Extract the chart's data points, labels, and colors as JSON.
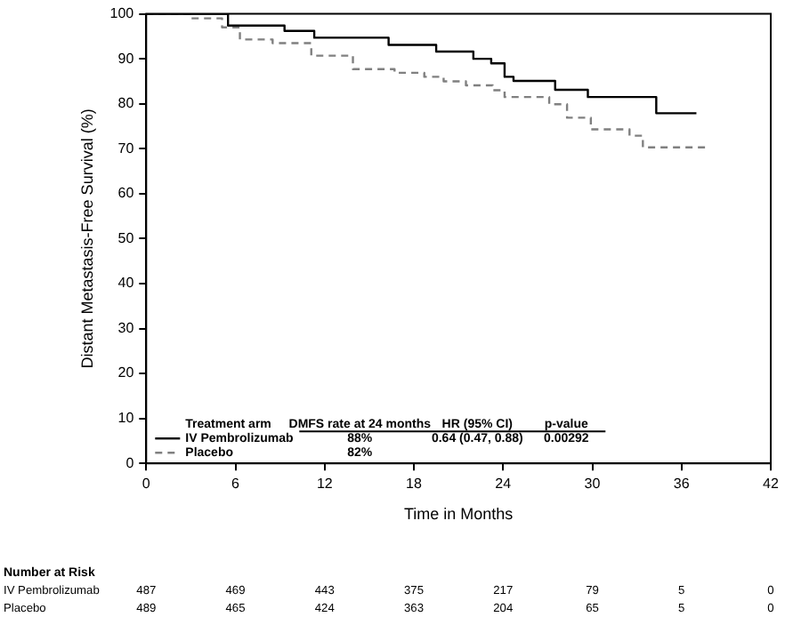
{
  "chart_data": {
    "type": "step",
    "xlabel": "Time in Months",
    "ylabel": "Distant Metastasis-Free Survival (%)",
    "xlim": [
      0,
      42
    ],
    "xticks": [
      0,
      6,
      12,
      18,
      24,
      30,
      36,
      42
    ],
    "ylim": [
      0,
      100
    ],
    "yticks": [
      0,
      10,
      20,
      30,
      40,
      50,
      60,
      70,
      80,
      90,
      100
    ],
    "grid": false,
    "legend": "bottom left",
    "marker": "none",
    "series": [
      {
        "name": "IV Pembrolizumab",
        "color": "#000000",
        "line_style": "solid",
        "x": [
          0,
          5.5,
          9.3,
          11.3,
          16.3,
          19.5,
          22,
          23.2,
          24.1,
          24.7,
          27.5,
          29.7,
          34.3,
          37
        ],
        "values": [
          100,
          97.4,
          96.2,
          94.7,
          93.1,
          91.6,
          90,
          89,
          86,
          85.1,
          83.1,
          81.5,
          77.9,
          77.9
        ]
      },
      {
        "name": "Placebo",
        "color": "#808080",
        "line_style": "dashed",
        "x": [
          0,
          3,
          5.1,
          6.3,
          8.5,
          11.1,
          13.9,
          16.7,
          18.7,
          20,
          21.5,
          23.3,
          24.1,
          27.1,
          28.3,
          29.9,
          32.5,
          33.4,
          37.7
        ],
        "values": [
          100,
          99,
          97,
          94.3,
          93.5,
          90.7,
          87.7,
          86.9,
          86,
          85,
          84.1,
          83,
          81.5,
          79.9,
          76.9,
          74.3,
          72.9,
          70.3,
          70.3
        ]
      }
    ],
    "annotations": [
      "Treatment arm",
      "DMFS rate at 24 months",
      "HR (95% CI)",
      "p-value",
      "88%",
      "0.64 (0.47, 0.88)",
      "0.00292",
      "82%",
      "Number at Risk",
      "487",
      "469",
      "443",
      "375",
      "217",
      "79",
      "5",
      "0",
      "489",
      "465",
      "424",
      "363",
      "204",
      "65",
      "5",
      "0"
    ]
  }
}
